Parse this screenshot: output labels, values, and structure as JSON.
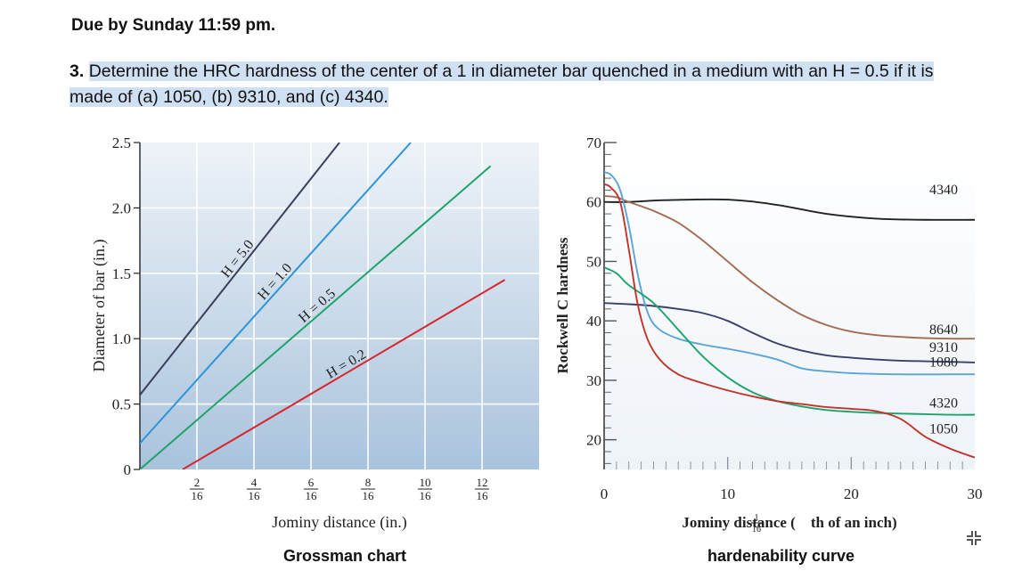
{
  "header": {
    "due": "Due by Sunday 11:59 pm.",
    "question_number": "3.",
    "question_text": "Determine the HRC hardness of the center of a 1 in diameter bar quenched in a medium with an H = 0.5 if it is made of (a) 1050, (b) 9310, and (c) 4340."
  },
  "colors": {
    "h5": "#3a3f5c",
    "h1": "#2d95d6",
    "h05": "#1ea46a",
    "h02": "#d8262d",
    "c4340": "#222222",
    "c8640": "#a26b52",
    "c9310": "#3a3f6e",
    "c1080": "#5ba5d6",
    "c4320": "#1ea46a",
    "c1050": "#c0342e"
  },
  "captions": {
    "left": "Grossman chart",
    "right": "hardenability curve"
  },
  "chart_data": [
    {
      "type": "line",
      "xlabel": "Jominy distance (in.)",
      "ylabel": "Diameter of bar (in.)",
      "xlim": [
        0,
        14
      ],
      "ylim": [
        0,
        2.5
      ],
      "x_tick_labels": [
        {
          "num": "2",
          "den": "16",
          "x": 2
        },
        {
          "num": "4",
          "den": "16",
          "x": 4
        },
        {
          "num": "6",
          "den": "16",
          "x": 6
        },
        {
          "num": "8",
          "den": "16",
          "x": 8
        },
        {
          "num": "10",
          "den": "16",
          "x": 10
        },
        {
          "num": "12",
          "den": "16",
          "x": 12
        }
      ],
      "y_ticks": [
        0,
        0.5,
        1.0,
        1.5,
        2.0,
        2.5
      ],
      "y_tick_labels": [
        "0",
        "0.5",
        "1.0",
        "1.5",
        "2.0",
        "2.5"
      ],
      "grid": true,
      "series": [
        {
          "name": "H = 5.0",
          "x": [
            0,
            7.0
          ],
          "y": [
            0.57,
            2.5
          ]
        },
        {
          "name": "H = 1.0",
          "x": [
            0,
            9.5
          ],
          "y": [
            0.2,
            2.5
          ]
        },
        {
          "name": "H = 0.5",
          "x": [
            0,
            12.3
          ],
          "y": [
            0,
            2.32
          ]
        },
        {
          "name": "H = 0.2",
          "x": [
            1.5,
            12.8
          ],
          "y": [
            0,
            1.45
          ]
        }
      ]
    },
    {
      "type": "line",
      "xlabel_prefix": "Jominy distance (",
      "xlabel_num": "1",
      "xlabel_den": "16",
      "xlabel_suffix": "th of an inch)",
      "ylabel": "Rockwell C hardness",
      "xlim": [
        0,
        30
      ],
      "ylim": [
        15,
        70
      ],
      "x_ticks": [
        0,
        10,
        20,
        30
      ],
      "x_tick_labels": [
        "0",
        "10",
        "20",
        "30"
      ],
      "y_ticks": [
        20,
        30,
        40,
        50,
        60,
        70
      ],
      "y_tick_labels": [
        "20",
        "30",
        "40",
        "50",
        "60",
        "70"
      ],
      "grid": false,
      "series": [
        {
          "name": "4340",
          "x": [
            0,
            2,
            5,
            10,
            14,
            18,
            22,
            26,
            30
          ],
          "y": [
            60,
            60,
            60.3,
            60.4,
            59.5,
            58,
            57.2,
            57,
            57
          ]
        },
        {
          "name": "8640",
          "x": [
            0,
            1,
            2,
            4,
            6,
            8,
            10,
            12,
            14,
            16,
            18,
            20,
            22,
            24,
            26,
            28,
            30
          ],
          "y": [
            61,
            60.8,
            60,
            58.5,
            56.5,
            53.5,
            50,
            46.5,
            43.5,
            41,
            39.3,
            38.2,
            37.6,
            37.3,
            37.1,
            37,
            37
          ]
        },
        {
          "name": "9310",
          "x": [
            0,
            2,
            4,
            6,
            8,
            10,
            12,
            14,
            16,
            18,
            20,
            22,
            24,
            26,
            28,
            30
          ],
          "y": [
            43,
            42.8,
            42.5,
            42,
            41.3,
            40,
            38,
            36.2,
            35,
            34.2,
            33.8,
            33.5,
            33.3,
            33.2,
            33.1,
            33
          ]
        },
        {
          "name": "1080",
          "x": [
            0,
            0.6,
            1.3,
            2,
            2.8,
            3.6,
            4.5,
            6,
            8,
            10,
            12,
            14,
            16,
            18,
            20,
            24,
            28,
            30
          ],
          "y": [
            65,
            64.5,
            62,
            56,
            47,
            41,
            38.5,
            37,
            36,
            35.3,
            34.5,
            33.5,
            32,
            31.5,
            31.2,
            31,
            31,
            31
          ]
        },
        {
          "name": "4320",
          "x": [
            0,
            1,
            2,
            4,
            6,
            8,
            10,
            12,
            14,
            16,
            18,
            20,
            22,
            24,
            26,
            28,
            30
          ],
          "y": [
            49,
            48,
            46,
            43,
            38.5,
            34,
            30.5,
            28,
            26.5,
            25.6,
            25,
            24.7,
            24.5,
            24.4,
            24.3,
            24.2,
            24.2
          ]
        },
        {
          "name": "1050",
          "x": [
            0,
            0.5,
            1.3,
            2,
            2.7,
            3.5,
            4.5,
            6,
            8,
            10,
            12,
            14,
            16,
            18,
            20,
            22,
            24,
            26,
            28,
            30
          ],
          "y": [
            63,
            62.5,
            60,
            52,
            43,
            37,
            33.5,
            31,
            29.5,
            28.3,
            27.3,
            26.5,
            26,
            25.5,
            25.2,
            24.8,
            23.5,
            20.5,
            18.5,
            17
          ]
        }
      ]
    }
  ]
}
